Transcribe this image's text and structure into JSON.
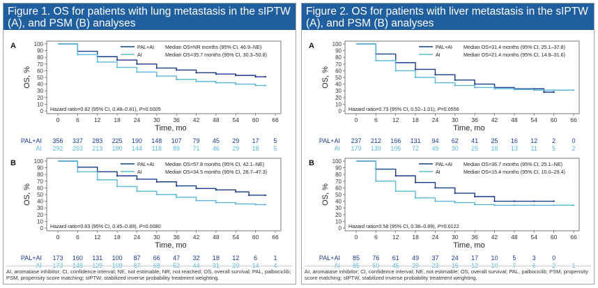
{
  "colors": {
    "pal_ai": "#1a3a8c",
    "ai": "#5bb8d8",
    "title_bg": "#1f5f9f"
  },
  "figure1": {
    "title": "Figure 1. OS for patients with lung metastasis in the sIPTW (A), and PSM (B) analyses",
    "footnote": "AI, aromatase inhibitor; CI, confidence interval; NE, not estimable; NR, not reached; OS, overall survival; PAL, palbociclib; PSM, propensity score matching; sIPTW, stabilized inverse probability treatment weighting."
  },
  "figure2": {
    "title": "Figure 2. OS for patients with liver metastasis in the sIPTW (A), and PSM (B) analyses",
    "footnote": "AI, aromatase inhibitor; CI, confidence interval; NE, not estimable; OS, overall survival; PAL, palbociclib; PSM, propensity score matching; sIPTW, stabilized inverse probability treatment weighting."
  },
  "chart_data": [
    {
      "type": "line",
      "panel_label": "A",
      "figure": "figure1",
      "xlabel": "Time, mo",
      "ylabel": "OS, %",
      "xlim": [
        0,
        66
      ],
      "ylim": [
        0,
        100
      ],
      "x_ticks": [
        "0",
        "6",
        "12",
        "18",
        "24",
        "30",
        "36",
        "42",
        "48",
        "54",
        "60",
        "66"
      ],
      "y_ticks": [
        "0",
        "10",
        "20",
        "30",
        "40",
        "50",
        "60",
        "70",
        "80",
        "90",
        "100"
      ],
      "hazard_prefix": "Hazard ratio=0.62 (95% CI, 0.48–0.81), ",
      "p_label": "P",
      "p_suffix": "=0.0005",
      "series": [
        {
          "name": "PAL+AI",
          "legend": "Median OS=NR months (95% CI, 46.9–NE)",
          "x": [
            0,
            6,
            12,
            18,
            24,
            30,
            36,
            42,
            48,
            54,
            60,
            63
          ],
          "y": [
            100,
            89,
            81,
            76,
            70,
            64,
            61,
            57,
            55,
            53,
            51,
            51
          ],
          "at_risk": [
            "356",
            "337",
            "283",
            "225",
            "190",
            "148",
            "107",
            "79",
            "45",
            "29",
            "17",
            "5"
          ]
        },
        {
          "name": "AI",
          "legend": "Median OS=35.7 months (95% CI, 30.3–50.8)",
          "x": [
            0,
            6,
            12,
            18,
            24,
            30,
            36,
            42,
            48,
            54,
            60,
            63
          ],
          "y": [
            100,
            84,
            73,
            65,
            58,
            52,
            47,
            44,
            42,
            40,
            38,
            38
          ],
          "at_risk": [
            "292",
            "253",
            "213",
            "180",
            "144",
            "118",
            "89",
            "71",
            "46",
            "29",
            "18",
            "5"
          ]
        }
      ]
    },
    {
      "type": "line",
      "panel_label": "B",
      "figure": "figure1",
      "xlabel": "Time, mo",
      "ylabel": "OS, %",
      "xlim": [
        0,
        66
      ],
      "ylim": [
        0,
        100
      ],
      "x_ticks": [
        "0",
        "6",
        "12",
        "18",
        "24",
        "30",
        "36",
        "42",
        "48",
        "54",
        "60",
        "66"
      ],
      "y_ticks": [
        "0",
        "10",
        "20",
        "30",
        "40",
        "50",
        "60",
        "70",
        "80",
        "90",
        "100"
      ],
      "hazard_prefix": "Hazard ratio=0.63 (95% CI, 0.45–0.89), ",
      "p_label": "P",
      "p_suffix": "=0.0080",
      "series": [
        {
          "name": "PAL+AI",
          "legend": "Median OS=57.8 months (95% CI, 42.1–NE)",
          "x": [
            0,
            6,
            12,
            18,
            24,
            30,
            36,
            42,
            48,
            54,
            58,
            63
          ],
          "y": [
            100,
            91,
            84,
            78,
            73,
            69,
            63,
            59,
            57,
            54,
            49,
            49
          ],
          "at_risk": [
            "173",
            "160",
            "131",
            "100",
            "87",
            "66",
            "47",
            "32",
            "18",
            "12",
            "6",
            "1"
          ]
        },
        {
          "name": "AI",
          "legend": "Median OS=34.5 months (95% CI, 28.7–47.3)",
          "x": [
            0,
            6,
            12,
            18,
            24,
            30,
            36,
            42,
            48,
            54,
            60,
            63
          ],
          "y": [
            100,
            84,
            72,
            62,
            55,
            50,
            46,
            41,
            38,
            36,
            35,
            35
          ],
          "at_risk": [
            "173",
            "148",
            "129",
            "109",
            "87",
            "68",
            "52",
            "44",
            "31",
            "20",
            "14",
            "4"
          ]
        }
      ]
    },
    {
      "type": "line",
      "panel_label": "A",
      "figure": "figure2",
      "xlabel": "Time, mo",
      "ylabel": "OS, %",
      "xlim": [
        0,
        66
      ],
      "ylim": [
        0,
        100
      ],
      "x_ticks": [
        "0",
        "6",
        "12",
        "18",
        "24",
        "30",
        "36",
        "42",
        "48",
        "54",
        "60",
        "66"
      ],
      "y_ticks": [
        "0",
        "10",
        "20",
        "30",
        "40",
        "50",
        "60",
        "70",
        "80",
        "90",
        "100"
      ],
      "hazard_prefix": "Hazard ratio=0.73 (95% CI, 0.52–1.01), ",
      "p_label": "P",
      "p_suffix": "=0.0556",
      "series": [
        {
          "name": "PAL+AI",
          "legend": "Median OS=31.4 months (95% CI, 25.1–37.8)",
          "x": [
            0,
            6,
            12,
            18,
            24,
            30,
            36,
            42,
            48,
            54,
            57,
            60
          ],
          "y": [
            100,
            85,
            72,
            62,
            54,
            46,
            40,
            35,
            33,
            33,
            28,
            28
          ],
          "at_risk": [
            "237",
            "212",
            "166",
            "131",
            "94",
            "62",
            "41",
            "25",
            "16",
            "12",
            "2",
            "0"
          ]
        },
        {
          "name": "AI",
          "legend": "Median OS=21.4 months (95% CI, 14.8–31.6)",
          "x": [
            0,
            6,
            12,
            18,
            24,
            30,
            36,
            42,
            48,
            54,
            60,
            66
          ],
          "y": [
            100,
            75,
            60,
            50,
            42,
            38,
            35,
            33,
            32,
            31,
            31,
            31
          ],
          "at_risk": [
            "179",
            "139",
            "105",
            "72",
            "49",
            "30",
            "25",
            "18",
            "13",
            "11",
            "5",
            "2"
          ]
        }
      ]
    },
    {
      "type": "line",
      "panel_label": "B",
      "figure": "figure2",
      "xlabel": "Time, mo",
      "ylabel": "OS, %",
      "xlim": [
        0,
        66
      ],
      "ylim": [
        0,
        100
      ],
      "x_ticks": [
        "0",
        "6",
        "12",
        "18",
        "24",
        "30",
        "36",
        "42",
        "48",
        "54",
        "60",
        "66"
      ],
      "y_ticks": [
        "0",
        "10",
        "20",
        "30",
        "40",
        "50",
        "60",
        "70",
        "80",
        "90",
        "100"
      ],
      "hazard_prefix": "Hazard ratio=0.58 (95% CI, 0.38–0.89), ",
      "p_label": "P",
      "p_suffix": "=0.0122",
      "series": [
        {
          "name": "PAL+AI",
          "legend": "Median OS=36.7 months (95% CI, 25.1–NE)",
          "x": [
            0,
            6,
            12,
            18,
            24,
            30,
            36,
            42,
            48,
            54,
            60
          ],
          "y": [
            100,
            88,
            78,
            68,
            60,
            52,
            47,
            40,
            40,
            40,
            40
          ],
          "at_risk": [
            "85",
            "76",
            "61",
            "49",
            "37",
            "24",
            "17",
            "10",
            "5",
            "3",
            "0"
          ]
        },
        {
          "name": "AI",
          "legend": "Median OS=15.4 months (95% CI, 10.0–29.4)",
          "x": [
            0,
            6,
            12,
            18,
            24,
            30,
            36,
            42,
            48,
            54,
            60,
            66
          ],
          "y": [
            100,
            70,
            55,
            45,
            40,
            38,
            35,
            34,
            34,
            34,
            34,
            34
          ],
          "at_risk": [
            "85",
            "60",
            "45",
            "29",
            "23",
            "16",
            "12",
            "10",
            "7",
            "6",
            "2",
            "1"
          ]
        }
      ]
    }
  ]
}
